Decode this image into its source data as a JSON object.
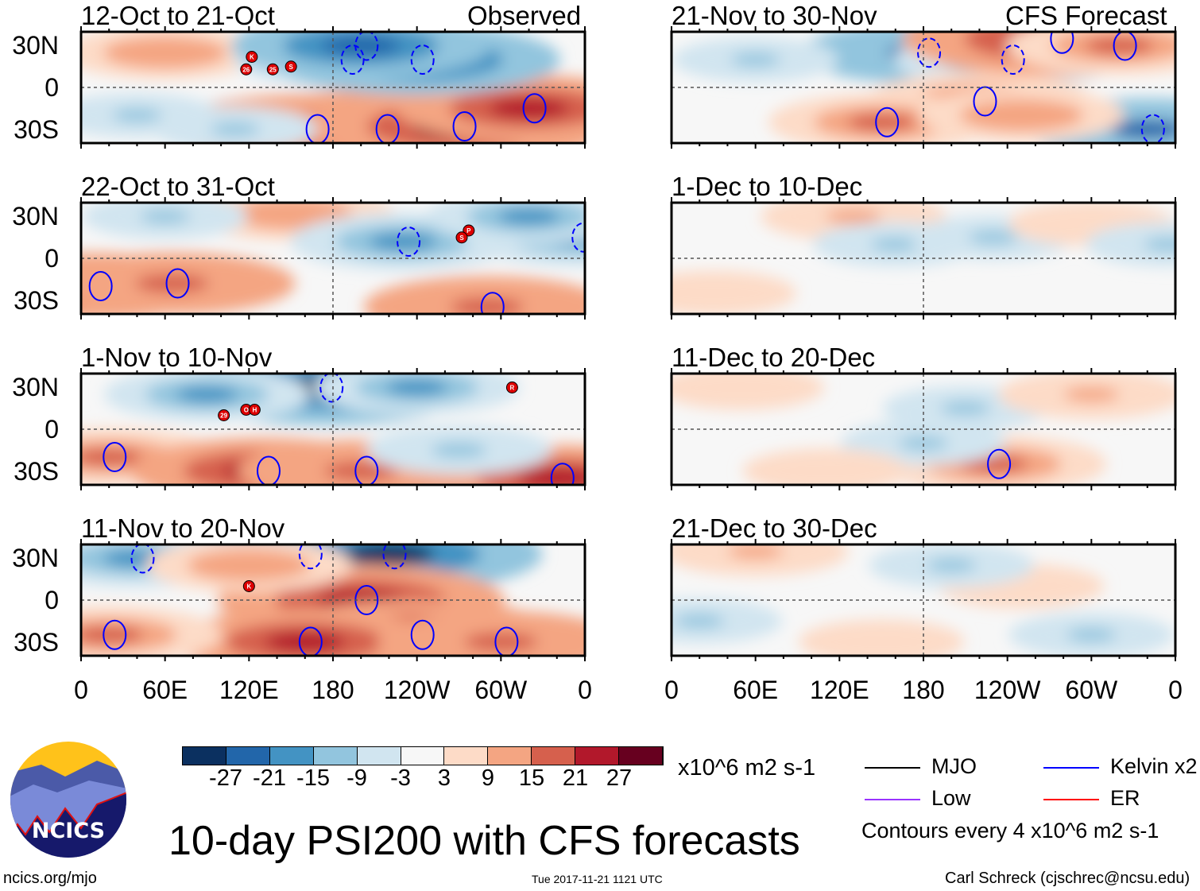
{
  "title": "10-day PSI200 with CFS forecasts",
  "units": "x10^6 m2 s-1",
  "url": "ncics.org/mjo",
  "timestamp": "Tue 2017-11-21 1121 UTC",
  "author": "Carl Schreck (cjschrec@ncsu.edu)",
  "logo_text": "NCICS",
  "observed_label": "Observed",
  "forecast_label": "CFS Forecast",
  "contour_note": "Contours every 4 x10^6 m2 s-1",
  "lat_labels": [
    "30N",
    "0",
    "30S"
  ],
  "lon_labels": [
    "0",
    "60E",
    "120E",
    "180",
    "120W",
    "60W",
    "0"
  ],
  "colorbar": {
    "labels": [
      "-27",
      "-21",
      "-15",
      "-9",
      "-3",
      "3",
      "9",
      "15",
      "21",
      "27"
    ],
    "colors": [
      "#0b3060",
      "#2266aa",
      "#4393c3",
      "#92c5de",
      "#d1e5f0",
      "#f7f7f7",
      "#fddbc7",
      "#f4a582",
      "#d6604d",
      "#b2182b",
      "#67001f"
    ]
  },
  "legend": [
    {
      "label": "MJO",
      "color": "#000000"
    },
    {
      "label": "Kelvin x2",
      "color": "#0000ff"
    },
    {
      "label": "Low",
      "color": "#9933ff"
    },
    {
      "label": "ER",
      "color": "#ff0000"
    }
  ],
  "chart_data": {
    "type": "heatmap",
    "lon_range": [
      0,
      360
    ],
    "lat_range": [
      -40,
      40
    ],
    "panels": [
      {
        "label": "12-Oct to 21-Oct",
        "side": "observed",
        "anomalies": [
          [
            60,
            25,
            12
          ],
          [
            130,
            -25,
            -9
          ],
          [
            165,
            -30,
            24
          ],
          [
            215,
            -30,
            30
          ],
          [
            270,
            -28,
            27
          ],
          [
            320,
            -15,
            21
          ],
          [
            190,
            20,
            -15
          ],
          [
            240,
            20,
            -24
          ],
          [
            200,
            30,
            -20
          ],
          [
            110,
            -30,
            -6
          ],
          [
            40,
            -20,
            -6
          ]
        ],
        "storms": [
          [
            "K",
            122,
            22
          ],
          [
            "26",
            118,
            13
          ],
          [
            "25",
            137,
            13
          ],
          [
            "S",
            150,
            15
          ]
        ]
      },
      {
        "label": "22-Oct to 31-Oct",
        "side": "observed",
        "anomalies": [
          [
            10,
            -20,
            21
          ],
          [
            65,
            -18,
            18
          ],
          [
            150,
            32,
            12
          ],
          [
            230,
            12,
            -15
          ],
          [
            290,
            -35,
            18
          ],
          [
            355,
            15,
            -15
          ],
          [
            320,
            30,
            -12
          ],
          [
            60,
            30,
            -6
          ]
        ],
        "storms": [
          [
            "P",
            277,
            20
          ],
          [
            "S",
            272,
            15
          ]
        ]
      },
      {
        "label": "1-Nov to 10-Nov",
        "side": "observed",
        "anomalies": [
          [
            175,
            30,
            -27
          ],
          [
            90,
            25,
            -12
          ],
          [
            240,
            30,
            -12
          ],
          [
            20,
            -20,
            15
          ],
          [
            130,
            -30,
            21
          ],
          [
            200,
            -30,
            18
          ],
          [
            340,
            -35,
            21
          ],
          [
            270,
            -15,
            -9
          ]
        ],
        "storms": [
          [
            "R",
            308,
            30
          ],
          [
            "29",
            102,
            10
          ],
          [
            "O",
            118,
            14
          ],
          [
            "H",
            124,
            14
          ]
        ]
      },
      {
        "label": "11-Nov to 20-Nov",
        "side": "observed",
        "anomalies": [
          [
            160,
            33,
            -27
          ],
          [
            220,
            33,
            -27
          ],
          [
            40,
            30,
            -15
          ],
          [
            200,
            0,
            24
          ],
          [
            240,
            -25,
            24
          ],
          [
            160,
            -30,
            21
          ],
          [
            300,
            -30,
            18
          ],
          [
            20,
            -25,
            15
          ],
          [
            120,
            25,
            12
          ]
        ],
        "storms": [
          [
            "K",
            120,
            10
          ]
        ]
      },
      {
        "label": "21-Nov to 30-Nov",
        "side": "forecast",
        "anomalies": [
          [
            180,
            25,
            -18
          ],
          [
            240,
            20,
            -15
          ],
          [
            220,
            -10,
            15
          ],
          [
            150,
            -25,
            15
          ],
          [
            275,
            35,
            27
          ],
          [
            320,
            30,
            15
          ],
          [
            340,
            -30,
            -18
          ],
          [
            250,
            -20,
            12
          ],
          [
            60,
            20,
            -6
          ]
        ],
        "storms": []
      },
      {
        "label": "1-Dec to 10-Dec",
        "side": "forecast",
        "anomalies": [
          [
            130,
            30,
            9
          ],
          [
            160,
            10,
            -6
          ],
          [
            230,
            15,
            -6
          ],
          [
            300,
            25,
            6
          ],
          [
            355,
            10,
            -6
          ],
          [
            30,
            -25,
            6
          ]
        ],
        "storms": []
      },
      {
        "label": "11-Dec to 20-Dec",
        "side": "forecast",
        "anomalies": [
          [
            230,
            -25,
            15
          ],
          [
            180,
            -10,
            -6
          ],
          [
            210,
            15,
            -6
          ],
          [
            300,
            25,
            9
          ],
          [
            110,
            -30,
            6
          ],
          [
            50,
            30,
            6
          ]
        ],
        "storms": []
      },
      {
        "label": "21-Dec to 30-Dec",
        "side": "forecast",
        "anomalies": [
          [
            60,
            35,
            9
          ],
          [
            150,
            -30,
            6
          ],
          [
            250,
            10,
            6
          ],
          [
            300,
            -25,
            -6
          ],
          [
            200,
            25,
            -6
          ],
          [
            20,
            -15,
            -6
          ]
        ],
        "storms": []
      }
    ]
  }
}
